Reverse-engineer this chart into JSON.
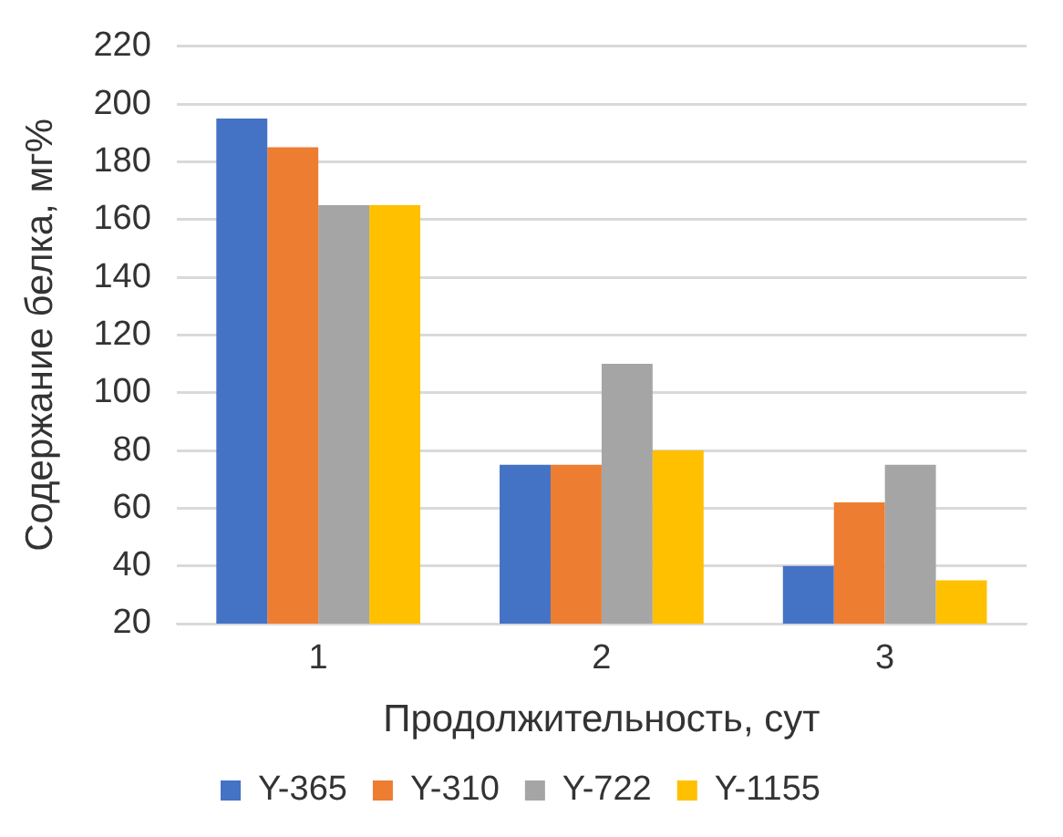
{
  "chart_data": {
    "type": "bar",
    "xlabel": "Продолжительность, сут",
    "ylabel": "Содержание белка, мг%",
    "categories": [
      "1",
      "2",
      "3"
    ],
    "series": [
      {
        "name": "Y-365",
        "color": "#4472c4",
        "values": [
          195,
          75,
          40
        ]
      },
      {
        "name": "Y-310",
        "color": "#ed7d31",
        "values": [
          185,
          75,
          62
        ]
      },
      {
        "name": "Y-722",
        "color": "#a5a5a5",
        "values": [
          165,
          110,
          75
        ]
      },
      {
        "name": "Y-1155",
        "color": "#ffc000",
        "values": [
          165,
          80,
          35
        ]
      }
    ],
    "ylim": [
      20,
      220
    ],
    "yticks": [
      20,
      40,
      60,
      80,
      100,
      120,
      140,
      160,
      180,
      200,
      220
    ],
    "grid": "y",
    "legend": "bottom"
  }
}
